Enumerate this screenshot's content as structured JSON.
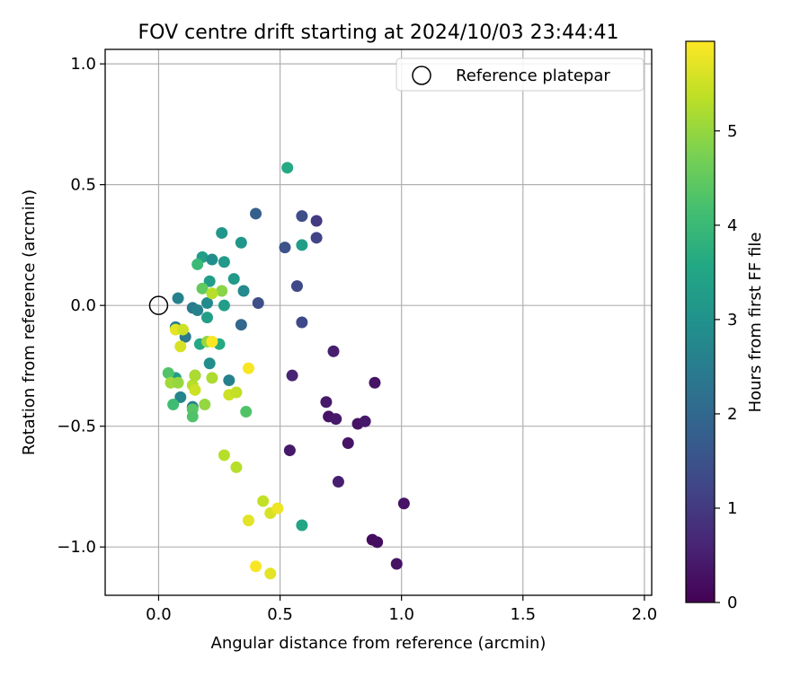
{
  "chart_data": {
    "type": "scatter",
    "title": "FOV centre drift starting at 2024/10/03 23:44:41",
    "xlabel": "Angular distance from reference (arcmin)",
    "ylabel": "Rotation from reference (arcmin)",
    "xlim": [
      -0.22,
      2.03
    ],
    "ylim": [
      -1.2,
      1.06
    ],
    "x_ticks": [
      0.0,
      0.5,
      1.0,
      1.5,
      2.0
    ],
    "x_tick_labels": [
      "0.0",
      "0.5",
      "1.0",
      "1.5",
      "2.0"
    ],
    "y_ticks": [
      -1.0,
      -0.5,
      0.0,
      0.5,
      1.0
    ],
    "y_tick_labels": [
      "−1.0",
      "−0.5",
      "0.0",
      "0.5",
      "1.0"
    ],
    "grid": true,
    "legend": {
      "position": "top-right",
      "entries": [
        "Reference platepar"
      ]
    },
    "reference_point": {
      "x": 0.0,
      "y": 0.0
    },
    "colorbar": {
      "label": "Hours from first FF file",
      "range": [
        0,
        5.95
      ],
      "ticks": [
        0,
        1,
        2,
        3,
        4,
        5
      ],
      "tick_labels": [
        "0",
        "1",
        "2",
        "3",
        "4",
        "5"
      ],
      "colormap": "viridis"
    },
    "series": [
      {
        "points": [
          {
            "x": 0.72,
            "y": -0.19,
            "h": 0.5
          },
          {
            "x": 0.89,
            "y": -0.32,
            "h": 0.3
          },
          {
            "x": 0.69,
            "y": -0.4,
            "h": 0.4
          },
          {
            "x": 0.7,
            "y": -0.46,
            "h": 0.3
          },
          {
            "x": 0.73,
            "y": -0.47,
            "h": 0.4
          },
          {
            "x": 0.82,
            "y": -0.49,
            "h": 0.3
          },
          {
            "x": 0.85,
            "y": -0.48,
            "h": 0.4
          },
          {
            "x": 0.78,
            "y": -0.57,
            "h": 0.3
          },
          {
            "x": 0.54,
            "y": -0.6,
            "h": 0.4
          },
          {
            "x": 0.74,
            "y": -0.73,
            "h": 0.5
          },
          {
            "x": 1.01,
            "y": -0.82,
            "h": 0.3
          },
          {
            "x": 0.88,
            "y": -0.97,
            "h": 0.2
          },
          {
            "x": 0.9,
            "y": -0.98,
            "h": 0.2
          },
          {
            "x": 0.98,
            "y": -1.07,
            "h": 0.3
          },
          {
            "x": 0.55,
            "y": -0.29,
            "h": 0.6
          },
          {
            "x": 0.59,
            "y": -0.07,
            "h": 1.3
          },
          {
            "x": 0.41,
            "y": 0.01,
            "h": 1.4
          },
          {
            "x": 0.57,
            "y": 0.08,
            "h": 1.3
          },
          {
            "x": 0.65,
            "y": 0.28,
            "h": 1.2
          },
          {
            "x": 0.65,
            "y": 0.35,
            "h": 1.0
          },
          {
            "x": 0.59,
            "y": 0.37,
            "h": 1.4
          },
          {
            "x": 0.52,
            "y": 0.24,
            "h": 1.5
          },
          {
            "x": 0.4,
            "y": 0.38,
            "h": 1.8
          },
          {
            "x": 0.34,
            "y": -0.08,
            "h": 2.0
          },
          {
            "x": 0.53,
            "y": 0.57,
            "h": 3.6
          },
          {
            "x": 0.59,
            "y": 0.25,
            "h": 3.3
          },
          {
            "x": 0.26,
            "y": 0.3,
            "h": 3.1
          },
          {
            "x": 0.34,
            "y": 0.26,
            "h": 3.1
          },
          {
            "x": 0.18,
            "y": 0.2,
            "h": 3.3
          },
          {
            "x": 0.22,
            "y": 0.19,
            "h": 2.9
          },
          {
            "x": 0.27,
            "y": 0.18,
            "h": 3.2
          },
          {
            "x": 0.31,
            "y": 0.11,
            "h": 3.2
          },
          {
            "x": 0.21,
            "y": 0.1,
            "h": 3.3
          },
          {
            "x": 0.35,
            "y": 0.06,
            "h": 2.8
          },
          {
            "x": 0.08,
            "y": 0.03,
            "h": 2.6
          },
          {
            "x": 0.2,
            "y": 0.01,
            "h": 2.8
          },
          {
            "x": 0.27,
            "y": 0.0,
            "h": 3.3
          },
          {
            "x": 0.14,
            "y": -0.01,
            "h": 2.4
          },
          {
            "x": 0.16,
            "y": -0.02,
            "h": 2.6
          },
          {
            "x": 0.2,
            "y": -0.05,
            "h": 3.3
          },
          {
            "x": 0.07,
            "y": -0.09,
            "h": 2.5
          },
          {
            "x": 0.11,
            "y": -0.13,
            "h": 2.4
          },
          {
            "x": 0.17,
            "y": -0.16,
            "h": 3.6
          },
          {
            "x": 0.25,
            "y": -0.16,
            "h": 3.6
          },
          {
            "x": 0.21,
            "y": -0.24,
            "h": 2.9
          },
          {
            "x": 0.29,
            "y": -0.31,
            "h": 2.6
          },
          {
            "x": 0.15,
            "y": -0.29,
            "h": 2.8
          },
          {
            "x": 0.07,
            "y": -0.3,
            "h": 3.3
          },
          {
            "x": 0.09,
            "y": -0.38,
            "h": 2.7
          },
          {
            "x": 0.14,
            "y": -0.42,
            "h": 2.5
          },
          {
            "x": 0.59,
            "y": -0.91,
            "h": 3.5
          },
          {
            "x": 0.16,
            "y": 0.17,
            "h": 4.0
          },
          {
            "x": 0.18,
            "y": 0.07,
            "h": 4.5
          },
          {
            "x": 0.26,
            "y": 0.06,
            "h": 4.9
          },
          {
            "x": 0.22,
            "y": 0.05,
            "h": 5.3
          },
          {
            "x": 0.07,
            "y": -0.1,
            "h": 5.7
          },
          {
            "x": 0.1,
            "y": -0.1,
            "h": 5.5
          },
          {
            "x": 0.2,
            "y": -0.15,
            "h": 5.0
          },
          {
            "x": 0.22,
            "y": -0.15,
            "h": 5.9
          },
          {
            "x": 0.09,
            "y": -0.17,
            "h": 5.6
          },
          {
            "x": 0.04,
            "y": -0.28,
            "h": 4.3
          },
          {
            "x": 0.05,
            "y": -0.32,
            "h": 5.1
          },
          {
            "x": 0.08,
            "y": -0.32,
            "h": 5.0
          },
          {
            "x": 0.14,
            "y": -0.33,
            "h": 5.3
          },
          {
            "x": 0.15,
            "y": -0.35,
            "h": 5.5
          },
          {
            "x": 0.15,
            "y": -0.29,
            "h": 5.2
          },
          {
            "x": 0.22,
            "y": -0.3,
            "h": 5.2
          },
          {
            "x": 0.37,
            "y": -0.26,
            "h": 5.9
          },
          {
            "x": 0.29,
            "y": -0.37,
            "h": 5.5
          },
          {
            "x": 0.32,
            "y": -0.36,
            "h": 5.4
          },
          {
            "x": 0.06,
            "y": -0.41,
            "h": 4.1
          },
          {
            "x": 0.19,
            "y": -0.41,
            "h": 5.0
          },
          {
            "x": 0.14,
            "y": -0.43,
            "h": 4.4
          },
          {
            "x": 0.14,
            "y": -0.46,
            "h": 4.3
          },
          {
            "x": 0.36,
            "y": -0.44,
            "h": 4.3
          },
          {
            "x": 0.27,
            "y": -0.62,
            "h": 5.3
          },
          {
            "x": 0.32,
            "y": -0.67,
            "h": 5.3
          },
          {
            "x": 0.43,
            "y": -0.81,
            "h": 5.4
          },
          {
            "x": 0.46,
            "y": -0.86,
            "h": 5.6
          },
          {
            "x": 0.49,
            "y": -0.84,
            "h": 5.8
          },
          {
            "x": 0.37,
            "y": -0.89,
            "h": 5.7
          },
          {
            "x": 0.4,
            "y": -1.08,
            "h": 5.9
          },
          {
            "x": 0.46,
            "y": -1.11,
            "h": 5.7
          }
        ]
      }
    ]
  }
}
